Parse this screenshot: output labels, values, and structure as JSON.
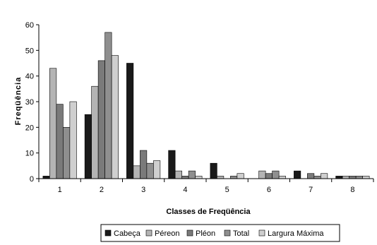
{
  "chart_data": {
    "type": "bar",
    "xlabel": "Classes de Freqüência",
    "ylabel": "Freqüência",
    "categories": [
      "1",
      "2",
      "3",
      "4",
      "5",
      "6",
      "7",
      "8"
    ],
    "ylim": [
      0,
      60
    ],
    "yticks": [
      0,
      10,
      20,
      30,
      40,
      50,
      60
    ],
    "grid": false,
    "legend_position": "bottom",
    "series": [
      {
        "name": "Cabeça",
        "color": "#1a1a1a",
        "values": [
          1,
          25,
          45,
          11,
          6,
          0,
          3,
          1
        ]
      },
      {
        "name": "Péreon",
        "color": "#b4b4b4",
        "values": [
          43,
          36,
          5,
          3,
          1,
          3,
          0,
          1
        ]
      },
      {
        "name": "Pléon",
        "color": "#7a7a7a",
        "values": [
          29,
          46,
          11,
          1,
          0,
          2,
          2,
          1
        ]
      },
      {
        "name": "Total",
        "color": "#8f8f8f",
        "values": [
          20,
          57,
          6,
          3,
          1,
          3,
          1,
          1
        ]
      },
      {
        "name": "Largura Máxima",
        "color": "#cfcfcf",
        "values": [
          30,
          48,
          7,
          1,
          2,
          1,
          2,
          1
        ]
      }
    ]
  }
}
